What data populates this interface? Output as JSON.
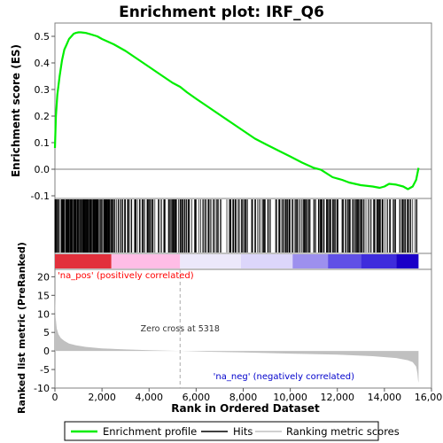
{
  "chart_data": {
    "type": "line",
    "title": "Enrichment plot: IRF_Q6",
    "xlabel": "Rank in Ordered Dataset",
    "x_ticks": [
      "0",
      "2,000",
      "4,000",
      "6,000",
      "8,000",
      "10,000",
      "12,000",
      "14,000",
      "16,000"
    ],
    "x_tick_values": [
      0,
      2000,
      4000,
      6000,
      8000,
      10000,
      12000,
      14000,
      16000
    ],
    "xlim": [
      0,
      16000
    ],
    "n_genes": 15450,
    "es_panel": {
      "ylabel": "Enrichment score (ES)",
      "ylim": [
        -0.11,
        0.55
      ],
      "y_ticks": [
        "-0.1",
        "0.0",
        "0.1",
        "0.2",
        "0.3",
        "0.4",
        "0.5"
      ],
      "y_tick_values": [
        -0.1,
        0.0,
        0.1,
        0.2,
        0.3,
        0.4,
        0.5
      ],
      "series": [
        {
          "name": "Enrichment profile",
          "color": "#00ee00",
          "x": [
            0,
            40,
            100,
            200,
            300,
            400,
            500,
            600,
            700,
            800,
            900,
            1000,
            1100,
            1300,
            1500,
            1800,
            2000,
            2500,
            3000,
            3500,
            4000,
            4500,
            5000,
            5318,
            5600,
            6000,
            6500,
            7000,
            7500,
            8000,
            8500,
            9000,
            9500,
            10000,
            10500,
            11000,
            11300,
            11800,
            12200,
            12500,
            13000,
            13500,
            13800,
            14000,
            14200,
            14500,
            14800,
            15000,
            15200,
            15350,
            15450
          ],
          "y": [
            0.08,
            0.2,
            0.28,
            0.35,
            0.41,
            0.45,
            0.47,
            0.49,
            0.5,
            0.51,
            0.513,
            0.515,
            0.515,
            0.513,
            0.508,
            0.5,
            0.49,
            0.47,
            0.445,
            0.415,
            0.385,
            0.355,
            0.325,
            0.31,
            0.29,
            0.265,
            0.235,
            0.205,
            0.175,
            0.145,
            0.115,
            0.092,
            0.07,
            0.048,
            0.025,
            0.005,
            -0.002,
            -0.03,
            -0.04,
            -0.05,
            -0.06,
            -0.065,
            -0.07,
            -0.065,
            -0.055,
            -0.058,
            -0.065,
            -0.075,
            -0.065,
            -0.04,
            0.005
          ]
        }
      ]
    },
    "hits_panel": {
      "legend_label": "Hits",
      "color": "#000000",
      "gene_set_size": 580,
      "dense_until_rank": 2400,
      "bands": [
        {
          "until_rank": 2400,
          "color": "#e2303c"
        },
        {
          "until_rank": 5318,
          "color": "#ffbde6"
        },
        {
          "until_rank": 7900,
          "color": "#ece8fa"
        },
        {
          "until_rank": 10100,
          "color": "#dcd6fa"
        },
        {
          "until_rank": 11600,
          "color": "#9d90ee"
        },
        {
          "until_rank": 13000,
          "color": "#6050e6"
        },
        {
          "until_rank": 14500,
          "color": "#3e2cdc"
        },
        {
          "until_rank": 15450,
          "color": "#1a00c8"
        }
      ]
    },
    "metric_panel": {
      "ylabel": "Ranked list metric (PreRanked)",
      "legend_label": "Ranking metric scores",
      "color": "#c0c0c0",
      "ylim": [
        -10,
        22
      ],
      "y_ticks": [
        "-10",
        "-5",
        "0",
        "5",
        "10",
        "15",
        "20"
      ],
      "y_tick_values": [
        -10,
        -5,
        0,
        5,
        10,
        15,
        20
      ],
      "x": [
        0,
        30,
        80,
        150,
        250,
        400,
        600,
        900,
        1300,
        2000,
        3000,
        4000,
        5318,
        6500,
        8000,
        10000,
        12000,
        13500,
        14500,
        15000,
        15200,
        15350,
        15400,
        15430,
        15450
      ],
      "y": [
        15.8,
        9,
        6,
        4.5,
        3.5,
        2.7,
        2.0,
        1.5,
        1.1,
        0.7,
        0.4,
        0.2,
        0,
        -0.2,
        -0.4,
        -0.7,
        -1.0,
        -1.4,
        -1.9,
        -2.5,
        -3.0,
        -4.2,
        -6,
        -8,
        -8.5
      ],
      "zero_cross_rank": 5318,
      "zero_cross_label": "Zero cross at 5318",
      "pos_label": "'na_pos' (positively correlated)",
      "neg_label": "'na_neg' (negatively correlated)",
      "pos_color": "#ff0000",
      "neg_color": "#0000cc"
    },
    "legend": {
      "position": "bottom",
      "entries": [
        "Enrichment profile",
        "Hits",
        "Ranking metric scores"
      ]
    }
  }
}
